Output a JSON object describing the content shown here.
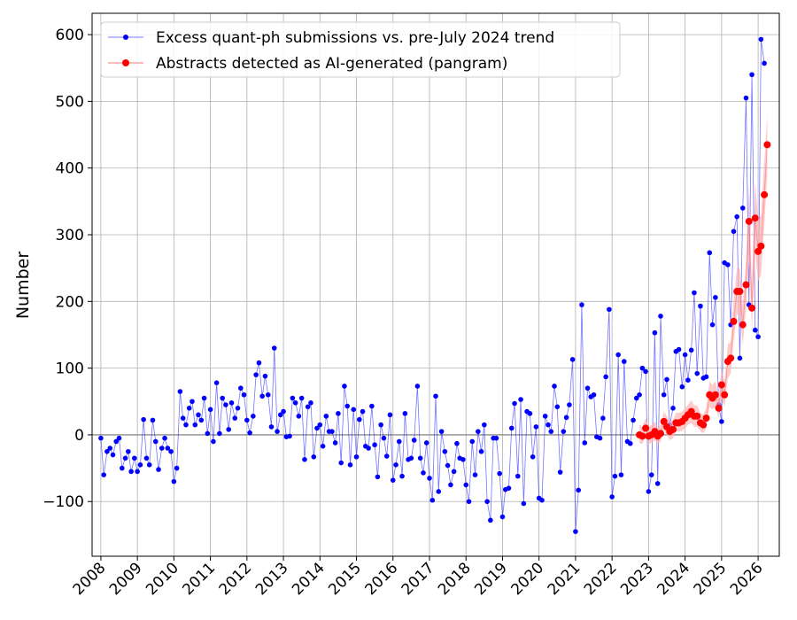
{
  "chart_data": {
    "type": "line",
    "y_label": "Number",
    "xlim": [
      2007.76,
      2026.58
    ],
    "ylim": [
      -182,
      632
    ],
    "xticks": [
      2008,
      2009,
      2010,
      2011,
      2012,
      2013,
      2014,
      2015,
      2016,
      2017,
      2018,
      2019,
      2020,
      2021,
      2022,
      2023,
      2024,
      2025,
      2026
    ],
    "yticks": [
      {
        "value": -100,
        "label": "−100"
      },
      0,
      100,
      200,
      300,
      400,
      500,
      600
    ],
    "grid": true,
    "hline": 0,
    "legend": "upper left",
    "series": [
      {
        "name": "Excess quant-ph submissions vs. pre-July 2024 trend",
        "color": "blue",
        "x": [
          2008,
          2008.08,
          2008.17,
          2008.25,
          2008.33,
          2008.42,
          2008.5,
          2008.58,
          2008.67,
          2008.75,
          2008.83,
          2008.92,
          2009,
          2009.08,
          2009.17,
          2009.25,
          2009.33,
          2009.42,
          2009.5,
          2009.58,
          2009.67,
          2009.75,
          2009.83,
          2009.92,
          2010,
          2010.08,
          2010.17,
          2010.25,
          2010.33,
          2010.42,
          2010.5,
          2010.58,
          2010.67,
          2010.75,
          2010.83,
          2010.92,
          2011,
          2011.08,
          2011.17,
          2011.25,
          2011.33,
          2011.42,
          2011.5,
          2011.58,
          2011.67,
          2011.75,
          2011.83,
          2011.92,
          2012,
          2012.08,
          2012.17,
          2012.25,
          2012.33,
          2012.42,
          2012.5,
          2012.58,
          2012.67,
          2012.75,
          2012.83,
          2012.92,
          2013,
          2013.08,
          2013.17,
          2013.25,
          2013.33,
          2013.42,
          2013.5,
          2013.58,
          2013.67,
          2013.75,
          2013.83,
          2013.92,
          2014,
          2014.08,
          2014.17,
          2014.25,
          2014.33,
          2014.42,
          2014.5,
          2014.58,
          2014.67,
          2014.75,
          2014.83,
          2014.92,
          2015,
          2015.08,
          2015.17,
          2015.25,
          2015.33,
          2015.42,
          2015.5,
          2015.58,
          2015.67,
          2015.75,
          2015.83,
          2015.92,
          2016,
          2016.08,
          2016.17,
          2016.25,
          2016.33,
          2016.42,
          2016.5,
          2016.58,
          2016.67,
          2016.75,
          2016.83,
          2016.92,
          2017,
          2017.08,
          2017.17,
          2017.25,
          2017.33,
          2017.42,
          2017.5,
          2017.58,
          2017.67,
          2017.75,
          2017.83,
          2017.92,
          2018,
          2018.08,
          2018.17,
          2018.25,
          2018.33,
          2018.42,
          2018.5,
          2018.58,
          2018.67,
          2018.75,
          2018.83,
          2018.92,
          2019,
          2019.08,
          2019.17,
          2019.25,
          2019.33,
          2019.42,
          2019.5,
          2019.58,
          2019.67,
          2019.75,
          2019.83,
          2019.92,
          2020,
          2020.08,
          2020.17,
          2020.25,
          2020.33,
          2020.42,
          2020.5,
          2020.58,
          2020.67,
          2020.75,
          2020.83,
          2020.92,
          2021,
          2021.08,
          2021.17,
          2021.25,
          2021.33,
          2021.42,
          2021.5,
          2021.58,
          2021.67,
          2021.75,
          2021.83,
          2021.92,
          2022,
          2022.08,
          2022.17,
          2022.25,
          2022.33,
          2022.42,
          2022.5,
          2022.58,
          2022.67,
          2022.75,
          2022.83,
          2022.92,
          2023,
          2023.08,
          2023.17,
          2023.25,
          2023.33,
          2023.42,
          2023.5,
          2023.58,
          2023.67,
          2023.75,
          2023.83,
          2023.92,
          2024,
          2024.08,
          2024.17,
          2024.25,
          2024.33,
          2024.42,
          2024.5,
          2024.58,
          2024.67,
          2024.75,
          2024.83,
          2024.92,
          2025,
          2025.08,
          2025.17,
          2025.25,
          2025.33,
          2025.42,
          2025.5,
          2025.58,
          2025.67,
          2025.75,
          2025.83,
          2025.92,
          2026,
          2026.08,
          2026.17
        ],
        "values": [
          -5,
          -60,
          -25,
          -20,
          -30,
          -10,
          -5,
          -50,
          -35,
          -25,
          -55,
          -35,
          -55,
          -45,
          23,
          -35,
          -45,
          22,
          -10,
          -52,
          -20,
          -5,
          -20,
          -25,
          -70,
          -50,
          65,
          25,
          15,
          40,
          50,
          15,
          30,
          22,
          55,
          2,
          38,
          -10,
          78,
          2,
          55,
          45,
          8,
          48,
          25,
          40,
          70,
          60,
          22,
          3,
          28,
          90,
          108,
          58,
          88,
          60,
          12,
          130,
          5,
          30,
          35,
          -3,
          -2,
          55,
          48,
          28,
          55,
          -37,
          42,
          48,
          -33,
          10,
          15,
          -17,
          28,
          5,
          5,
          -12,
          32,
          -42,
          73,
          43,
          -45,
          38,
          -33,
          23,
          35,
          -17,
          -20,
          43,
          -15,
          -63,
          15,
          -5,
          -32,
          30,
          -68,
          -45,
          -10,
          -62,
          32,
          -37,
          -35,
          -8,
          73,
          -35,
          -57,
          -12,
          -65,
          -98,
          58,
          -85,
          5,
          -25,
          -46,
          -75,
          -55,
          -13,
          -35,
          -37,
          -75,
          -100,
          -10,
          -60,
          5,
          -25,
          15,
          -100,
          -128,
          -5,
          -5,
          -58,
          -123,
          -82,
          -80,
          10,
          47,
          -62,
          53,
          -103,
          35,
          32,
          -33,
          12,
          -95,
          -98,
          28,
          15,
          5,
          73,
          42,
          -56,
          5,
          26,
          45,
          113,
          -145,
          -83,
          195,
          -12,
          70,
          57,
          60,
          -3,
          -5,
          25,
          87,
          188,
          -93,
          -62,
          120,
          -60,
          110,
          -10,
          -13,
          22,
          55,
          60,
          100,
          95,
          -85,
          -60,
          153,
          -73,
          178,
          60,
          83,
          15,
          40,
          125,
          128,
          72,
          120,
          82,
          127,
          213,
          92,
          193,
          85,
          87,
          273,
          165,
          206,
          45,
          20,
          258,
          255,
          165,
          305,
          327,
          115,
          340,
          505,
          195,
          540,
          157,
          147,
          593,
          557
        ]
      },
      {
        "name": "Abstracts detected as AI-generated (pangram)",
        "color": "red",
        "band_color": "#ffb3b3",
        "x": [
          2022.75,
          2022.83,
          2022.92,
          2023,
          2023.08,
          2023.17,
          2023.25,
          2023.33,
          2023.42,
          2023.5,
          2023.58,
          2023.67,
          2023.75,
          2023.83,
          2023.92,
          2024,
          2024.08,
          2024.17,
          2024.25,
          2024.33,
          2024.42,
          2024.5,
          2024.58,
          2024.67,
          2024.75,
          2024.83,
          2024.92,
          2025,
          2025.08,
          2025.17,
          2025.25,
          2025.33,
          2025.42,
          2025.5,
          2025.58,
          2025.67,
          2025.75,
          2025.83,
          2025.92,
          2026,
          2026.08,
          2026.17,
          2026.25
        ],
        "values": [
          0,
          -2,
          10,
          -2,
          0,
          5,
          -2,
          2,
          20,
          12,
          5,
          8,
          18,
          18,
          20,
          25,
          30,
          35,
          28,
          28,
          18,
          15,
          25,
          60,
          55,
          60,
          40,
          75,
          60,
          110,
          115,
          170,
          215,
          215,
          165,
          225,
          320,
          190,
          325,
          275,
          283,
          360,
          435
        ],
        "upper": [
          15,
          12,
          25,
          12,
          15,
          20,
          12,
          15,
          35,
          28,
          20,
          22,
          33,
          33,
          35,
          40,
          45,
          52,
          44,
          44,
          33,
          30,
          40,
          80,
          75,
          80,
          58,
          98,
          80,
          135,
          140,
          200,
          250,
          250,
          195,
          262,
          375,
          225,
          380,
          320,
          330,
          410,
          480
        ],
        "lower": [
          -12,
          -14,
          0,
          -14,
          -12,
          -8,
          -14,
          -10,
          8,
          0,
          -8,
          -5,
          5,
          5,
          6,
          10,
          15,
          18,
          12,
          12,
          5,
          2,
          10,
          42,
          38,
          42,
          25,
          55,
          42,
          85,
          92,
          140,
          180,
          180,
          135,
          190,
          270,
          158,
          275,
          230,
          240,
          315,
          390
        ]
      }
    ]
  }
}
